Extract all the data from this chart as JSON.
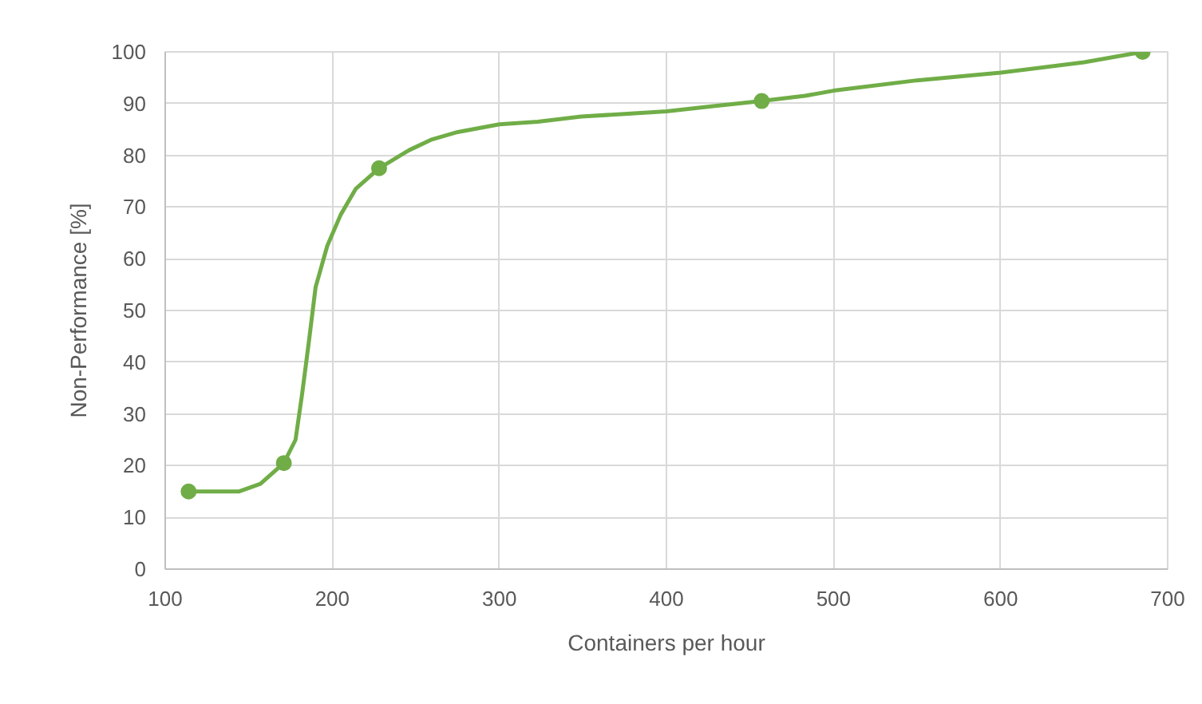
{
  "chart_data": {
    "type": "line",
    "xlabel": "Containers per hour",
    "ylabel": "Non-Performance [%]",
    "series": [
      {
        "color": "#70ad47",
        "marker": "none",
        "x": [
          114,
          128,
          144,
          157,
          171,
          178,
          182,
          186,
          190,
          197,
          205,
          214,
          228,
          246,
          259,
          275,
          300,
          323,
          349,
          375,
          400,
          428,
          457,
          483,
          500,
          550,
          600,
          650,
          685
        ],
        "values": [
          15,
          15,
          15,
          16.5,
          20.5,
          25,
          34,
          44,
          54.5,
          62.5,
          68.5,
          73.5,
          77.5,
          81,
          83,
          84.5,
          86,
          86.5,
          87.5,
          88,
          88.5,
          89.5,
          90.5,
          91.5,
          92.5,
          94.5,
          96,
          98,
          100
        ]
      },
      {
        "type": "scatter",
        "color": "#70ad47",
        "marker": "circle",
        "x": [
          114,
          171,
          228,
          457,
          685
        ],
        "values": [
          15,
          20.5,
          77.5,
          90.5,
          100
        ]
      }
    ],
    "xlim": [
      100,
      700
    ],
    "xticks": [
      100,
      200,
      300,
      400,
      500,
      600,
      700
    ],
    "ylim": [
      0,
      100
    ],
    "yticks": [
      0,
      10,
      20,
      30,
      40,
      50,
      60,
      70,
      80,
      90,
      100
    ],
    "grid": true,
    "line_style": "solid"
  }
}
